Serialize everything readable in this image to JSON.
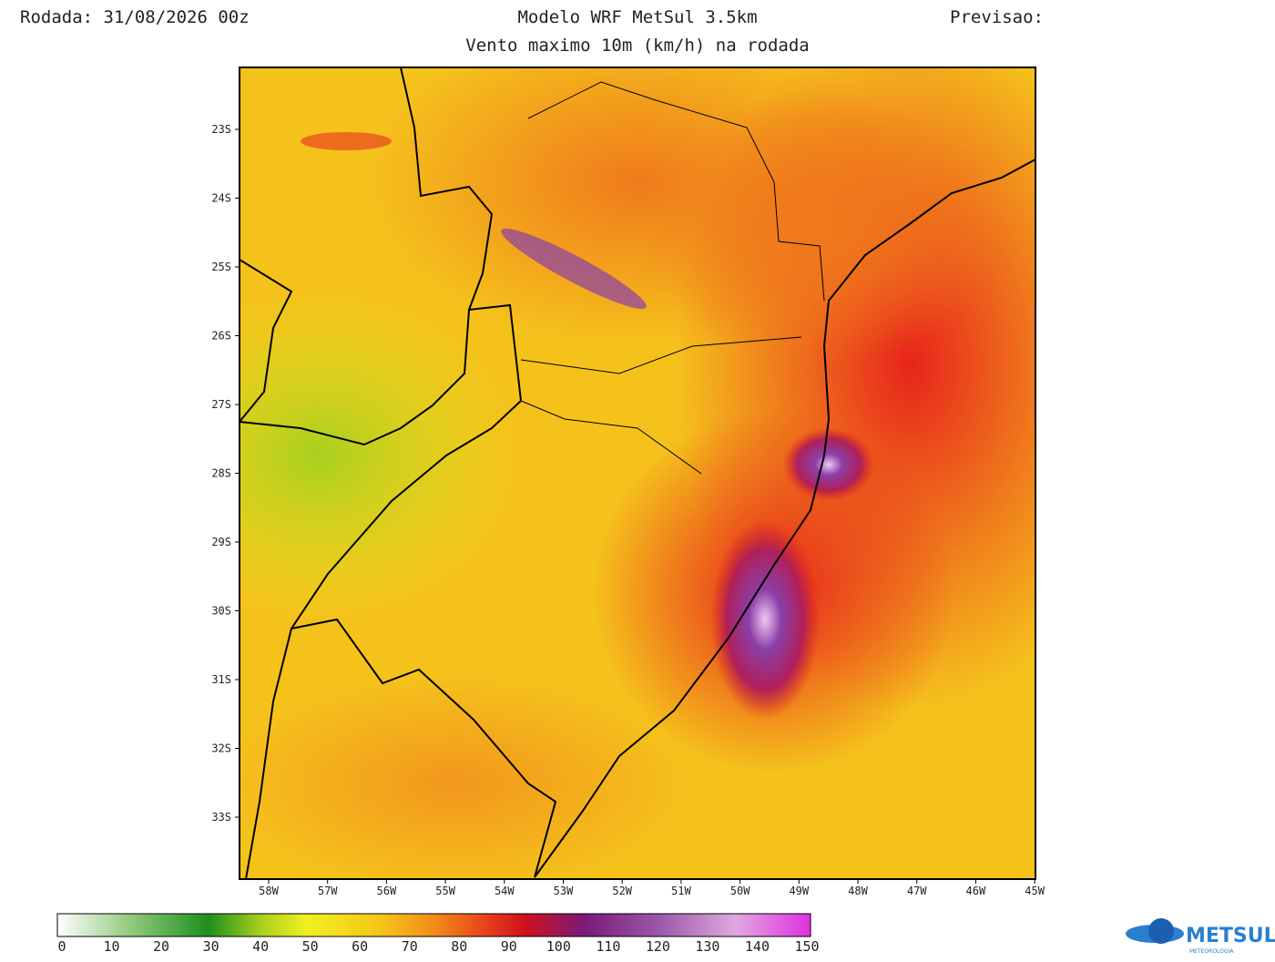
{
  "header": {
    "run": "Rodada: 31/08/2026 00z",
    "model": "Modelo WRF MetSul 3.5km",
    "forecast": "Previsao:",
    "subtitle": "Vento maximo 10m (km/h) na rodada"
  },
  "map": {
    "lat_labels": [
      "23S",
      "24S",
      "25S",
      "26S",
      "27S",
      "28S",
      "29S",
      "30S",
      "31S",
      "32S",
      "33S"
    ],
    "lon_labels": [
      "58W",
      "57W",
      "56W",
      "55W",
      "54W",
      "53W",
      "52W",
      "51W",
      "50W",
      "49W",
      "48W",
      "47W",
      "46W",
      "45W"
    ]
  },
  "colorbar": {
    "ticks": [
      0,
      10,
      20,
      30,
      40,
      50,
      60,
      70,
      80,
      90,
      100,
      110,
      120,
      130,
      140,
      150
    ]
  },
  "logo": {
    "name": "METSUL",
    "tagline": "METEOROLOGIA"
  }
}
